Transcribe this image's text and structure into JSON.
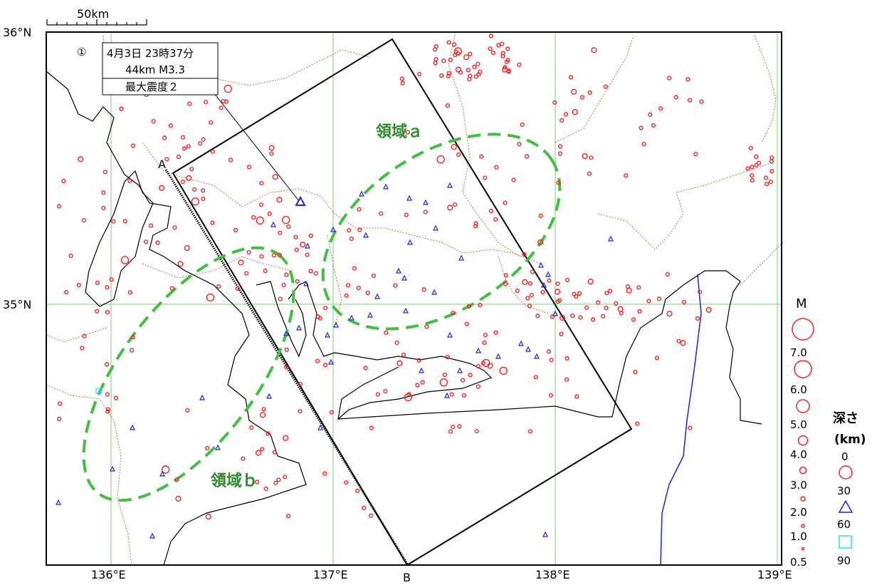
{
  "map": {
    "scale_label": "50km",
    "lat_labels": [
      "36°N",
      "35°N"
    ],
    "lon_labels": [
      "136°E",
      "137°E",
      "138°E",
      "139°E"
    ],
    "endpoint_labels": {
      "a": "A",
      "b": "B"
    },
    "region_labels": {
      "a": "領域ａ",
      "b": "領域ｂ"
    }
  },
  "callout": {
    "number": "①",
    "line1": "4月3日 23時37分",
    "line2": "44km  M3.3",
    "line3": "最大震度２"
  },
  "legend": {
    "magnitude_title": "M",
    "magnitudes": [
      "7.0",
      "6.0",
      "5.0",
      "4.0",
      "3.0",
      "2.0",
      "1.0",
      "0.5"
    ],
    "depth_title_1": "深さ",
    "depth_title_2": "(km)",
    "depths": [
      "0",
      "30",
      "60",
      "90"
    ]
  },
  "colors": {
    "grid": "#90e090",
    "prefecture_border": "#b07840",
    "epicenter_shallow": "#ff2020",
    "epicenter_mid": "#2020ff",
    "epicenter_deep": "#20e0ff",
    "region_outline": "#40c040",
    "plate_line": "#2020ff"
  }
}
